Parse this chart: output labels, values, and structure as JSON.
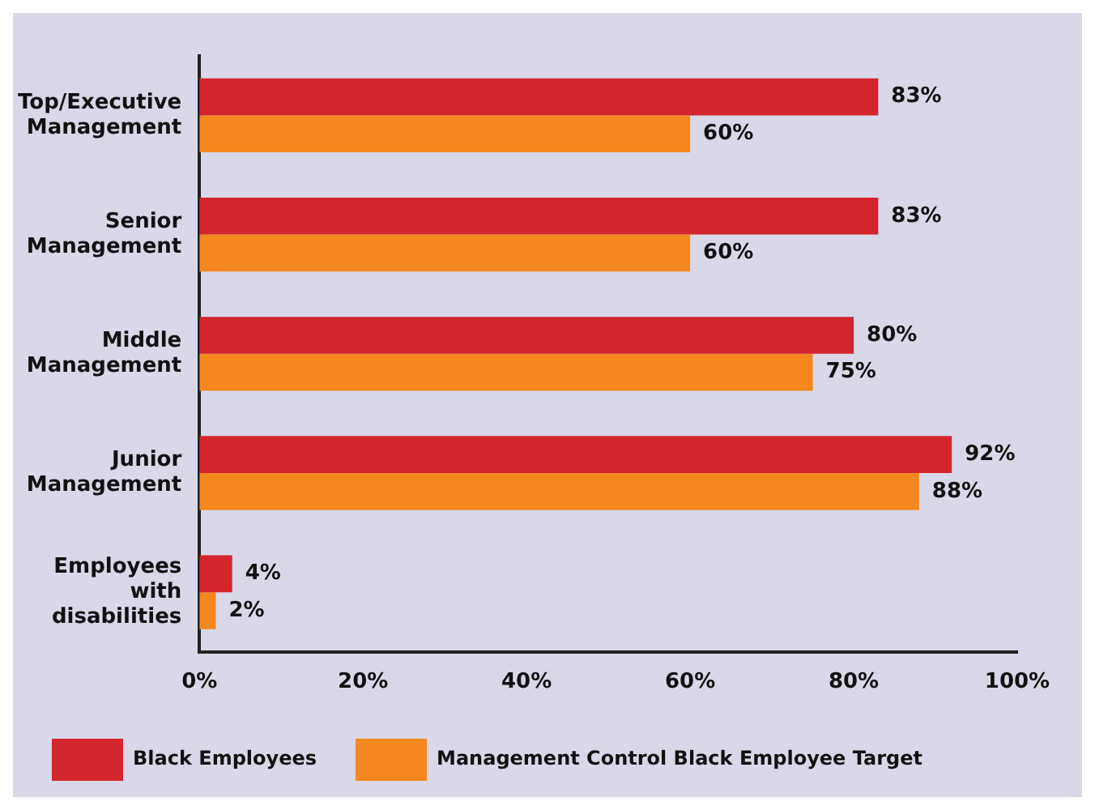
{
  "chart_data": {
    "type": "bar",
    "orientation": "horizontal",
    "categories": [
      "Top/Executive Management",
      "Senior Management",
      "Middle Management",
      "Junior Management",
      "Employees with disabilities"
    ],
    "series": [
      {
        "name": "Black Employees",
        "color": "#d3252d",
        "values": [
          83,
          83,
          80,
          92,
          4
        ],
        "value_labels": [
          "83%",
          "83%",
          "80%",
          "92%",
          "4%"
        ]
      },
      {
        "name": "Management Control Black Employee Target",
        "color": "#f5871f",
        "values": [
          60,
          60,
          75,
          88,
          2
        ],
        "value_labels": [
          "60%",
          "60%",
          "75%",
          "88%",
          "2%"
        ]
      }
    ],
    "xlim": [
      0,
      100
    ],
    "xticks": [
      {
        "value": 0,
        "label": "0%"
      },
      {
        "value": 20,
        "label": "20%"
      },
      {
        "value": 40,
        "label": "40%"
      },
      {
        "value": 60,
        "label": "60%"
      },
      {
        "value": 80,
        "label": "80%"
      },
      {
        "value": 100,
        "label": "100%"
      }
    ],
    "grid": false,
    "legend": "bottom"
  }
}
